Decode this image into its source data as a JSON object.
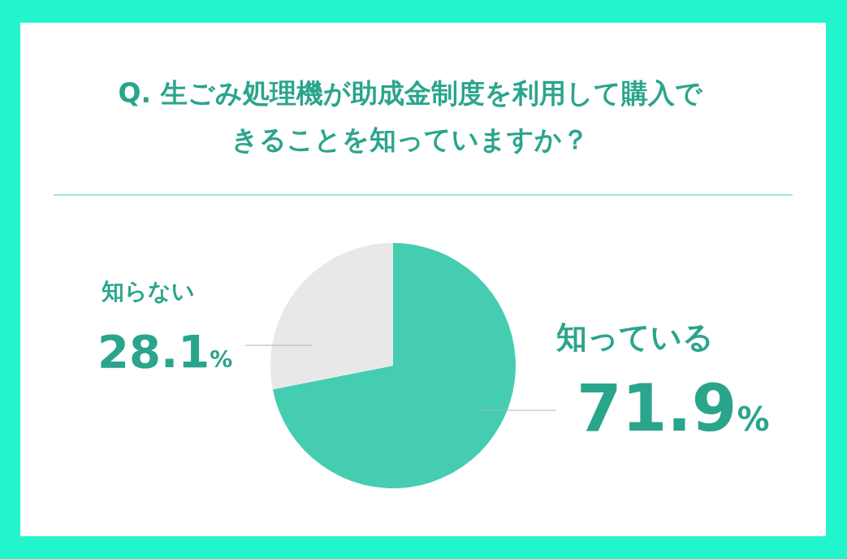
{
  "chart_data": {
    "type": "pie",
    "title": "Q. 生ごみ処理機が助成金制度を利用して購入できることを知っていますか？",
    "categories": [
      "知っている",
      "知らない"
    ],
    "values": [
      71.9,
      28.1
    ],
    "value_labels": [
      "71.9%",
      "28.1%"
    ],
    "colors": [
      "#45cdb2",
      "#e8e8e8"
    ]
  }
}
